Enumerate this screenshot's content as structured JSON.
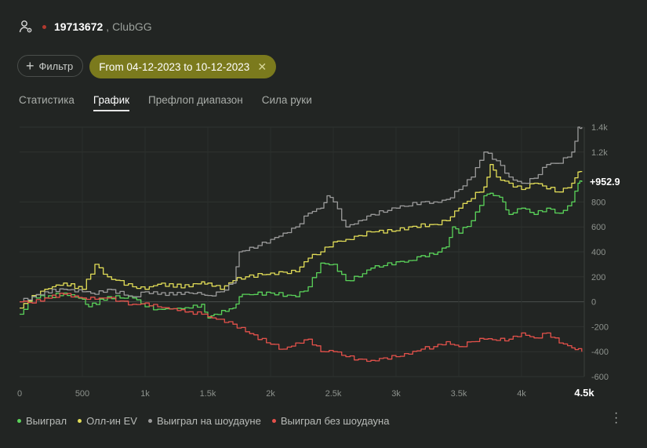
{
  "header": {
    "player_id": "19713672",
    "club": ", ClubGG",
    "icon": "user-settings-icon"
  },
  "filters": {
    "filter_button": "Фильтр",
    "date_range": "From 04-12-2023 to 10-12-2023",
    "clear": "✕"
  },
  "tabs": [
    {
      "label": "Статистика",
      "active": false
    },
    {
      "label": "График",
      "active": true
    },
    {
      "label": "Префлоп диапазон",
      "active": false
    },
    {
      "label": "Сила руки",
      "active": false
    }
  ],
  "legend": [
    {
      "label": "Выиграл",
      "color": "#5ad35a"
    },
    {
      "label": "Олл-ин EV",
      "color": "#e2dd57"
    },
    {
      "label": "Выиграл на шоудауне",
      "color": "#9b9b9b"
    },
    {
      "label": "Выиграл без шоудауна",
      "color": "#e5514b"
    }
  ],
  "chart_data": {
    "type": "line",
    "xlim": [
      0,
      4500
    ],
    "ylim": [
      -600,
      1400
    ],
    "x_ticks": [
      0,
      500,
      1000,
      1500,
      2000,
      2500,
      3000,
      3500,
      4000,
      4500
    ],
    "x_tick_labels": [
      "0",
      "500",
      "1k",
      "1.5k",
      "2k",
      "2.5k",
      "3k",
      "3.5k",
      "4k",
      "4.5k"
    ],
    "y_ticks": [
      1400,
      1200,
      800,
      600,
      400,
      200,
      0,
      -200,
      -400,
      -600
    ],
    "y_tick_labels": [
      "1.4k",
      "1.2k",
      "800",
      "600",
      "400",
      "200",
      "0",
      "-200",
      "-400",
      "-600"
    ],
    "grid": true,
    "end_label": "+952.9",
    "series": [
      {
        "name": "Выиграл",
        "color": "#5ad35a",
        "x": [
          0,
          100,
          200,
          350,
          500,
          550,
          700,
          900,
          1000,
          1100,
          1350,
          1450,
          1500,
          1550,
          1700,
          1750,
          1800,
          2000,
          2200,
          2300,
          2400,
          2500,
          2600,
          2700,
          2800,
          2900,
          3000,
          3100,
          3200,
          3300,
          3400,
          3450,
          3500,
          3600,
          3700,
          3750,
          3800,
          3850,
          3900,
          4000,
          4100,
          4200,
          4300,
          4400,
          4450,
          4480
        ],
        "y": [
          -100,
          50,
          30,
          70,
          20,
          -40,
          40,
          30,
          -40,
          -60,
          -50,
          -20,
          -130,
          -100,
          -50,
          40,
          60,
          70,
          40,
          120,
          310,
          300,
          170,
          200,
          270,
          290,
          320,
          330,
          370,
          380,
          440,
          600,
          550,
          650,
          850,
          870,
          850,
          800,
          700,
          750,
          700,
          750,
          710,
          800,
          950,
          960
        ]
      },
      {
        "name": "Олл-ин EV",
        "color": "#e2dd57",
        "x": [
          0,
          100,
          200,
          350,
          500,
          600,
          700,
          900,
          1000,
          1100,
          1350,
          1450,
          1500,
          1600,
          1700,
          1800,
          2000,
          2200,
          2300,
          2400,
          2500,
          2600,
          2700,
          2800,
          3000,
          3100,
          3300,
          3400,
          3500,
          3700,
          3750,
          3800,
          3900,
          4000,
          4100,
          4300,
          4400,
          4450,
          4480
        ],
        "y": [
          -50,
          50,
          100,
          150,
          100,
          300,
          200,
          120,
          100,
          140,
          120,
          160,
          150,
          100,
          170,
          200,
          230,
          240,
          350,
          400,
          480,
          500,
          530,
          560,
          570,
          600,
          620,
          650,
          750,
          920,
          1100,
          1000,
          950,
          900,
          950,
          880,
          950,
          1040,
          1040
        ]
      },
      {
        "name": "Выиграл на шоудауне",
        "color": "#9b9b9b",
        "x": [
          0,
          100,
          200,
          350,
          500,
          600,
          700,
          900,
          1000,
          1100,
          1350,
          1450,
          1500,
          1600,
          1700,
          1750,
          1800,
          1900,
          2000,
          2100,
          2200,
          2300,
          2400,
          2450,
          2500,
          2600,
          2700,
          2800,
          3000,
          3200,
          3300,
          3400,
          3500,
          3600,
          3700,
          3800,
          3900,
          4000,
          4100,
          4200,
          4300,
          4400,
          4450,
          4480
        ],
        "y": [
          0,
          40,
          80,
          100,
          80,
          60,
          100,
          40,
          80,
          60,
          70,
          60,
          50,
          80,
          150,
          400,
          410,
          450,
          500,
          550,
          600,
          710,
          750,
          850,
          800,
          600,
          650,
          700,
          750,
          800,
          800,
          820,
          900,
          1000,
          1200,
          1130,
          1000,
          950,
          990,
          1100,
          1110,
          1200,
          1400,
          1400
        ]
      },
      {
        "name": "Выиграл без шоудауна",
        "color": "#e5514b",
        "x": [
          0,
          100,
          200,
          350,
          500,
          600,
          700,
          900,
          1000,
          1100,
          1350,
          1450,
          1500,
          1600,
          1700,
          1800,
          2000,
          2100,
          2200,
          2300,
          2400,
          2500,
          2600,
          2700,
          2800,
          2900,
          3000,
          3100,
          3200,
          3300,
          3400,
          3500,
          3600,
          3700,
          3800,
          3900,
          4000,
          4100,
          4200,
          4300,
          4400,
          4480
        ],
        "y": [
          0,
          -10,
          30,
          60,
          30,
          20,
          30,
          -20,
          -10,
          -40,
          -80,
          -100,
          -120,
          -140,
          -180,
          -240,
          -340,
          -380,
          -330,
          -300,
          -400,
          -400,
          -440,
          -460,
          -470,
          -450,
          -440,
          -420,
          -380,
          -360,
          -320,
          -360,
          -320,
          -300,
          -310,
          -300,
          -250,
          -290,
          -250,
          -330,
          -370,
          -400
        ]
      }
    ]
  }
}
